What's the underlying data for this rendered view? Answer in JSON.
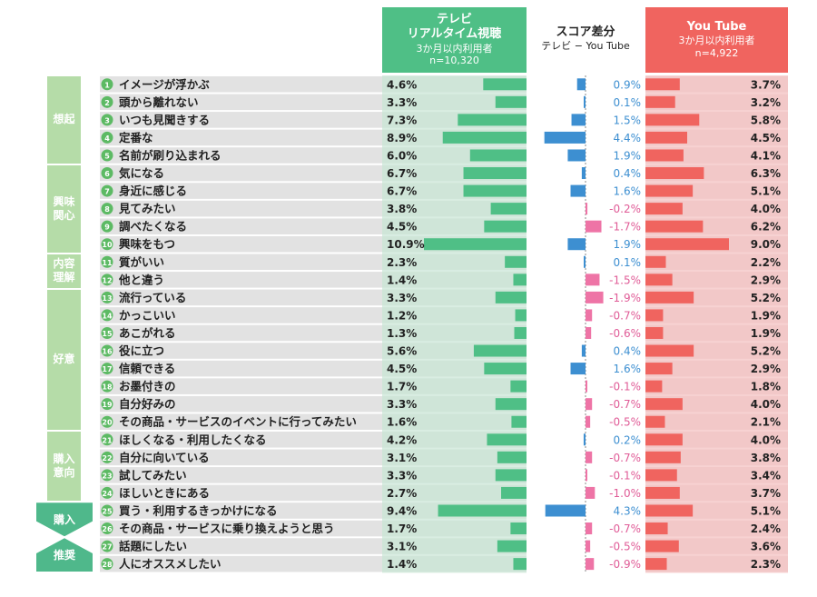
{
  "header": {
    "tv": {
      "title_line1": "テレビ",
      "title_line2": "リアルタイム視聴",
      "sub": "3か月以内利用者",
      "n": "n=10,320"
    },
    "diff": {
      "title": "スコア差分",
      "sub": "テレビ − You Tube"
    },
    "yt": {
      "title": "You Tube",
      "sub": "3か月以内利用者",
      "n": "n=4,922"
    }
  },
  "groups": [
    {
      "label": "想起",
      "rows": [
        1,
        5
      ]
    },
    {
      "label": "興味関心",
      "rows": [
        6,
        10
      ]
    },
    {
      "label": "内容理解",
      "rows": [
        11,
        12
      ]
    },
    {
      "label": "好意",
      "rows": [
        13,
        20
      ]
    },
    {
      "label": "購入意向",
      "rows": [
        21,
        24
      ]
    },
    {
      "label": "購入",
      "rows": [
        25,
        26
      ]
    },
    {
      "label": "推奨",
      "rows": [
        27,
        28
      ]
    }
  ],
  "colors": {
    "tv": "#4fbf86",
    "yt": "#f0645f",
    "diff_pos": "#3d8fd1",
    "diff_neg": "#ee74a6",
    "tv_bg": "#d9ede2",
    "yt_bg": "#f7d2d2",
    "row_bg": "#e2e2e2",
    "num_circle": "#5dba64"
  },
  "chart_data": {
    "type": "bar",
    "categories": [
      "イメージが浮かぶ",
      "頭から離れない",
      "いつも見聞きする",
      "定番な",
      "名前が刷り込まれる",
      "気になる",
      "身近に感じる",
      "見てみたい",
      "調べたくなる",
      "興味をもつ",
      "質がいい",
      "他と違う",
      "流行っている",
      "かっこいい",
      "あこがれる",
      "役に立つ",
      "信頼できる",
      "お墨付きの",
      "自分好みの",
      "その商品・サービスのイベントに行ってみたい",
      "ほしくなる・利用したくなる",
      "自分に向いている",
      "試してみたい",
      "ほしいときにある",
      "買う・利用するきっかけになる",
      "その商品・サービスに乗り換えようと思う",
      "話題にしたい",
      "人にオススメしたい"
    ],
    "series": [
      {
        "name": "テレビ リアルタイム視聴",
        "values": [
          4.6,
          3.3,
          7.3,
          8.9,
          6.0,
          6.7,
          6.7,
          3.8,
          4.5,
          10.9,
          2.3,
          1.4,
          3.3,
          1.2,
          1.3,
          5.6,
          4.5,
          1.7,
          3.3,
          1.6,
          4.2,
          3.1,
          3.3,
          2.7,
          9.4,
          1.7,
          3.1,
          1.4
        ]
      },
      {
        "name": "スコア差分",
        "values": [
          0.9,
          0.1,
          1.5,
          4.4,
          1.9,
          0.4,
          1.6,
          -0.2,
          -1.7,
          1.9,
          0.1,
          -1.5,
          -1.9,
          -0.7,
          -0.6,
          0.4,
          1.6,
          -0.1,
          -0.7,
          -0.5,
          0.2,
          -0.7,
          -0.1,
          -1.0,
          4.3,
          -0.7,
          -0.5,
          -0.9
        ]
      },
      {
        "name": "You Tube",
        "values": [
          3.7,
          3.2,
          5.8,
          4.5,
          4.1,
          6.3,
          5.1,
          4.0,
          6.2,
          9.0,
          2.2,
          2.9,
          5.2,
          1.9,
          1.9,
          5.2,
          2.9,
          1.8,
          4.0,
          2.1,
          4.0,
          3.8,
          3.4,
          3.7,
          5.1,
          2.4,
          3.6,
          2.3
        ]
      }
    ],
    "tv_labels": [
      "4.6%",
      "3.3%",
      "7.3%",
      "8.9%",
      "6.0%",
      "6.7%",
      "6.7%",
      "3.8%",
      "4.5%",
      "10.9%",
      "2.3%",
      "1.4%",
      "3.3%",
      "1.2%",
      "1.3%",
      "5.6%",
      "4.5%",
      "1.7%",
      "3.3%",
      "1.6%",
      "4.2%",
      "3.1%",
      "3.3%",
      "2.7%",
      "9.4%",
      "1.7%",
      "3.1%",
      "1.4%"
    ],
    "diff_labels": [
      "0.9%",
      "0.1%",
      "1.5%",
      "4.4%",
      "1.9%",
      "0.4%",
      "1.6%",
      "-0.2%",
      "-1.7%",
      "1.9%",
      "0.1%",
      "-1.5%",
      "-1.9%",
      "-0.7%",
      "-0.6%",
      "0.4%",
      "1.6%",
      "-0.1%",
      "-0.7%",
      "-0.5%",
      "0.2%",
      "-0.7%",
      "-0.1%",
      "-1.0%",
      "4.3%",
      "-0.7%",
      "-0.5%",
      "-0.9%"
    ],
    "yt_labels": [
      "3.7%",
      "3.2%",
      "5.8%",
      "4.5%",
      "4.1%",
      "6.3%",
      "5.1%",
      "4.0%",
      "6.2%",
      "9.0%",
      "2.2%",
      "2.9%",
      "5.2%",
      "1.9%",
      "1.9%",
      "5.2%",
      "2.9%",
      "1.8%",
      "4.0%",
      "2.1%",
      "4.0%",
      "3.8%",
      "3.4%",
      "3.7%",
      "5.1%",
      "2.4%",
      "3.6%",
      "2.3%"
    ],
    "tv_max": 10.9,
    "yt_max": 9.0,
    "diff_max": 4.4
  }
}
